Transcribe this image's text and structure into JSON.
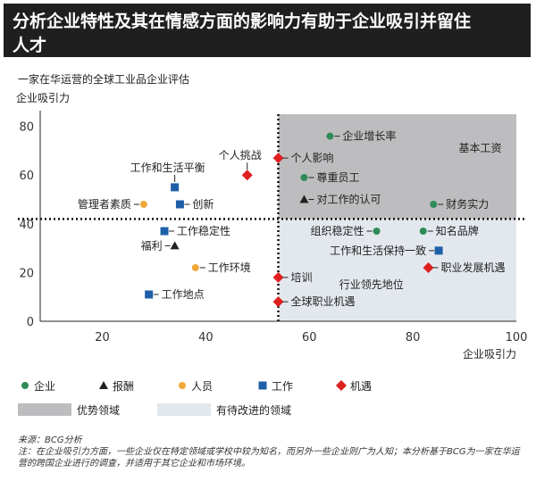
{
  "title": {
    "line1": "分析企业特性及其在情感方面的影响力有助于企业吸引并留住",
    "line2": "人才"
  },
  "subtitle": "一家在华运营的全球工业品企业评估",
  "chart_data": {
    "type": "scatter",
    "ylabel": "企业吸引力",
    "xlabel": "企业吸引力",
    "xlim": [
      8,
      100
    ],
    "ylim": [
      0,
      85
    ],
    "xticks": [
      20,
      40,
      60,
      80,
      100
    ],
    "yticks": [
      0,
      20,
      40,
      60,
      80
    ],
    "divider_x": 54,
    "divider_y": 42,
    "grid": false,
    "quadrants": {
      "advantage": {
        "label": "优势领域",
        "color": "#bdbdbf"
      },
      "improve": {
        "label": "有待改进的领域",
        "color": "#e3e8ee"
      }
    },
    "categories": [
      {
        "key": "enterprise",
        "label": "企业",
        "color": "#2e8b57",
        "marker": "circle"
      },
      {
        "key": "reward",
        "label": "报酬",
        "color": "#222222",
        "marker": "triangle"
      },
      {
        "key": "people",
        "label": "人员",
        "color": "#f2a93b",
        "marker": "circle"
      },
      {
        "key": "work",
        "label": "工作",
        "color": "#1f5fa8",
        "marker": "square"
      },
      {
        "key": "opportunity",
        "label": "机遇",
        "color": "#e02020",
        "marker": "diamond"
      }
    ],
    "points": [
      {
        "label": "企业增长率",
        "x": 64,
        "y": 76,
        "cat": "enterprise",
        "anchor": "right"
      },
      {
        "label": "基本工资",
        "x": 93,
        "y": 71,
        "cat": "enterprise",
        "anchor": "label-only"
      },
      {
        "label": "尊重员工",
        "x": 59,
        "y": 59,
        "cat": "enterprise",
        "anchor": "right"
      },
      {
        "label": "财务实力",
        "x": 84,
        "y": 48,
        "cat": "enterprise",
        "anchor": "right"
      },
      {
        "label": "组织稳定性",
        "x": 73,
        "y": 37,
        "cat": "enterprise",
        "anchor": "left"
      },
      {
        "label": "知名品牌",
        "x": 82,
        "y": 37,
        "cat": "enterprise",
        "anchor": "right"
      },
      {
        "label": "对工作的认可",
        "x": 59,
        "y": 50,
        "cat": "reward",
        "anchor": "right"
      },
      {
        "label": "福利",
        "x": 34,
        "y": 31,
        "cat": "reward",
        "anchor": "left"
      },
      {
        "label": "管理者素质",
        "x": 28,
        "y": 48,
        "cat": "people",
        "anchor": "left"
      },
      {
        "label": "工作环境",
        "x": 38,
        "y": 22,
        "cat": "people",
        "anchor": "right"
      },
      {
        "label": "工作和生活平衡",
        "x": 34,
        "y": 55,
        "cat": "work",
        "anchor": "top"
      },
      {
        "label": "创新",
        "x": 35,
        "y": 48,
        "cat": "work",
        "anchor": "right"
      },
      {
        "label": "工作稳定性",
        "x": 32,
        "y": 37,
        "cat": "work",
        "anchor": "right"
      },
      {
        "label": "工作地点",
        "x": 29,
        "y": 11,
        "cat": "work",
        "anchor": "right"
      },
      {
        "label": "工作和生活保持一致",
        "x": 85,
        "y": 29,
        "cat": "work",
        "anchor": "left"
      },
      {
        "label": "个人挑战",
        "x": 48,
        "y": 60,
        "cat": "opportunity",
        "anchor": "top"
      },
      {
        "label": "个人影响",
        "x": 54,
        "y": 67,
        "cat": "opportunity",
        "anchor": "right"
      },
      {
        "label": "培训",
        "x": 54,
        "y": 18,
        "cat": "opportunity",
        "anchor": "right"
      },
      {
        "label": "全球职业机遇",
        "x": 54,
        "y": 8,
        "cat": "opportunity",
        "anchor": "right"
      },
      {
        "label": "职业发展机遇",
        "x": 83,
        "y": 22,
        "cat": "opportunity",
        "anchor": "right"
      },
      {
        "label": "行业领先地位",
        "x": 72,
        "y": 15,
        "cat": "opportunity",
        "anchor": "label-only"
      }
    ]
  },
  "source": {
    "line1": "来源：BCG分析",
    "line2": "注：在企业吸引力方面，一些企业仅在特定领域或学校中较为知名，而另外一些企业则广为人知；本分析基于BCG为一家在华运营的跨国企业进行的调查，并适用于其它企业和市场环境。"
  }
}
